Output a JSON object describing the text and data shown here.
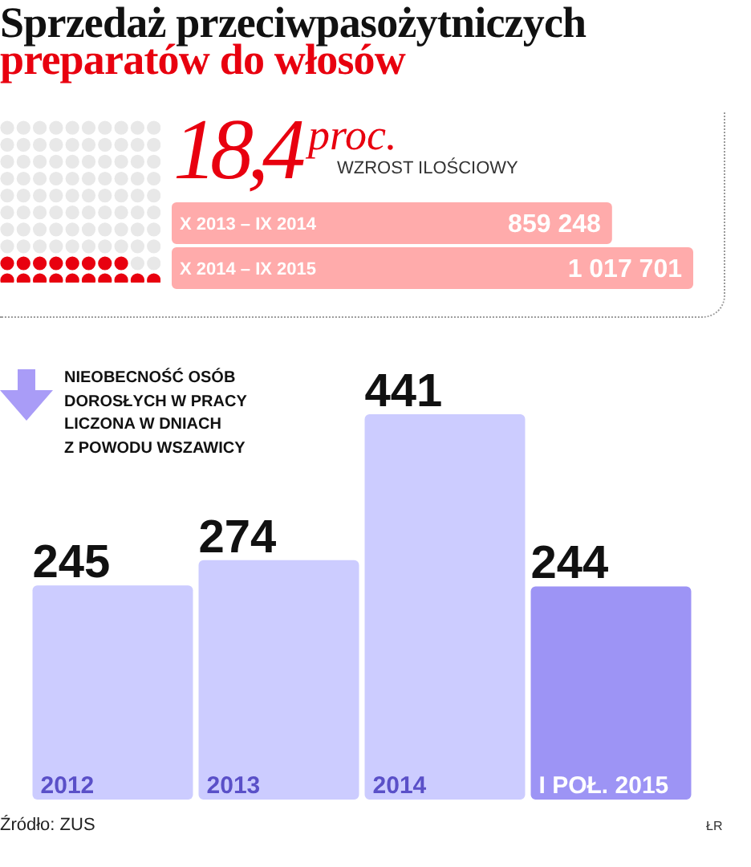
{
  "chart_data": [
    {
      "type": "bar",
      "orientation": "horizontal",
      "title": "Sprzedaż przeciwpasożytniczych",
      "subtitle": "preparatów do włosów",
      "annotations": [
        "18,4",
        "proc.",
        "WZROST ILOŚCIOWY"
      ],
      "categories": [
        "X 2013 – IX 2014",
        "X 2014 – IX 2015"
      ],
      "values": [
        859248,
        1017701
      ],
      "value_labels": [
        "859 248",
        "1 017 701"
      ],
      "color": "#ffabab",
      "tick_labels": "y"
    },
    {
      "type": "bar",
      "title": "NIEOBECNOŚĆ OSÓB\nDOROSŁYCH W PRACY\nLICZONA W DNIACH\nZ POWODU WSZAWICY",
      "categories": [
        "2012",
        "2013",
        "2014",
        "I POŁ. 2015"
      ],
      "values": [
        245,
        274,
        441,
        244
      ],
      "colors": [
        "#ccccff",
        "#ccccff",
        "#ccccff",
        "#9d94f5"
      ],
      "data_labels": true,
      "tick_labels": "x",
      "annotations": [
        "Źródło: ZUS",
        "ŁR"
      ]
    }
  ]
}
